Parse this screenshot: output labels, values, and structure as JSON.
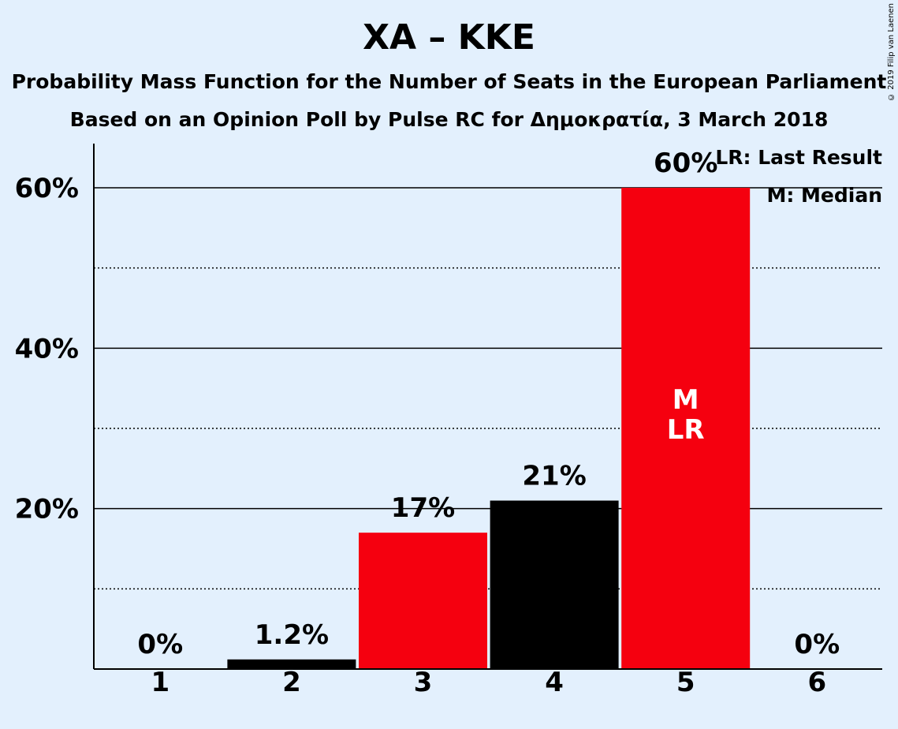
{
  "title": "ΧΑ – ΚΚΕ",
  "subtitle_1": "Probability Mass Function for the Number of Seats in the European Parliament",
  "subtitle_2": "Based on an Opinion Poll by Pulse RC for Δημοκρατία, 3 March 2018",
  "copyright": "© 2019 Filip van Laenen",
  "legend": {
    "last_result": "LR: Last Result",
    "median": "M: Median"
  },
  "colors": {
    "background": "#e3f0fd",
    "red": "#f5000f",
    "black": "#000000"
  },
  "chart_data": {
    "type": "bar",
    "categories": [
      "1",
      "2",
      "3",
      "4",
      "5",
      "6"
    ],
    "values": [
      0,
      1.2,
      17,
      21,
      60,
      0
    ],
    "value_labels": [
      "0%",
      "1.2%",
      "17%",
      "21%",
      "60%",
      "0%"
    ],
    "bar_colors": [
      "red",
      "black",
      "red",
      "black",
      "red",
      "black"
    ],
    "bar_annotations": [
      "",
      "",
      "",
      "",
      "M\nLR",
      ""
    ],
    "ylim": [
      0,
      65
    ],
    "yticks": [
      20,
      40,
      60
    ],
    "ytick_labels": [
      "20%",
      "40%",
      "60%"
    ],
    "minor_gridlines": [
      10,
      30,
      50
    ],
    "grid": true,
    "legend_placement": "top-right"
  }
}
